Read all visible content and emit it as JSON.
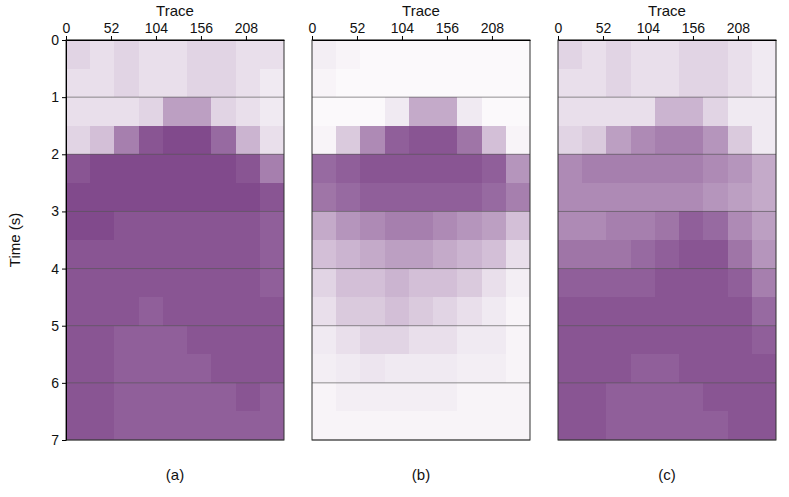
{
  "chart_data": [
    {
      "type": "heatmap",
      "title": "(a)",
      "x_label": "Trace",
      "y_label": "Time (s)",
      "xlim": [
        0,
        252
      ],
      "ylim": [
        0,
        7
      ],
      "xticks": [
        0,
        52,
        104,
        156,
        208
      ],
      "yticks": [
        0,
        1,
        2,
        3,
        4,
        5,
        6,
        7
      ],
      "grid": true,
      "color": "#6b2a78",
      "zlim": [
        0,
        1
      ],
      "x_bins": [
        0,
        28,
        56,
        84,
        112,
        140,
        168,
        196,
        224,
        252
      ],
      "y_bins": [
        0,
        0.5,
        1,
        1.5,
        2,
        2.5,
        3,
        3.5,
        4,
        4.5,
        5,
        5.5,
        6,
        6.5,
        7
      ],
      "cells": [
        [
          0.2,
          0.15,
          0.2,
          0.15,
          0.15,
          0.2,
          0.2,
          0.15,
          0.15
        ],
        [
          0.15,
          0.15,
          0.2,
          0.15,
          0.15,
          0.2,
          0.2,
          0.15,
          0.1
        ],
        [
          0.15,
          0.15,
          0.15,
          0.2,
          0.45,
          0.45,
          0.2,
          0.15,
          0.1
        ],
        [
          0.2,
          0.3,
          0.6,
          0.8,
          0.85,
          0.85,
          0.7,
          0.35,
          0.15
        ],
        [
          0.8,
          0.85,
          0.85,
          0.85,
          0.85,
          0.85,
          0.85,
          0.8,
          0.6
        ],
        [
          0.85,
          0.85,
          0.85,
          0.85,
          0.85,
          0.85,
          0.85,
          0.85,
          0.8
        ],
        [
          0.85,
          0.85,
          0.8,
          0.8,
          0.8,
          0.8,
          0.8,
          0.8,
          0.75
        ],
        [
          0.8,
          0.8,
          0.8,
          0.8,
          0.8,
          0.8,
          0.8,
          0.8,
          0.75
        ],
        [
          0.8,
          0.8,
          0.8,
          0.8,
          0.8,
          0.8,
          0.8,
          0.8,
          0.75
        ],
        [
          0.8,
          0.8,
          0.8,
          0.75,
          0.8,
          0.8,
          0.8,
          0.8,
          0.8
        ],
        [
          0.8,
          0.8,
          0.75,
          0.75,
          0.75,
          0.8,
          0.8,
          0.8,
          0.8
        ],
        [
          0.8,
          0.8,
          0.75,
          0.75,
          0.75,
          0.75,
          0.8,
          0.8,
          0.8
        ],
        [
          0.8,
          0.8,
          0.75,
          0.75,
          0.75,
          0.75,
          0.75,
          0.8,
          0.75
        ],
        [
          0.8,
          0.8,
          0.75,
          0.75,
          0.75,
          0.75,
          0.75,
          0.75,
          0.75
        ]
      ]
    },
    {
      "type": "heatmap",
      "title": "(b)",
      "x_label": "Trace",
      "xlim": [
        0,
        252
      ],
      "ylim": [
        0,
        7
      ],
      "xticks": [
        0,
        52,
        104,
        156,
        208
      ],
      "yticks": [
        0,
        1,
        2,
        3,
        4,
        5,
        6,
        7
      ],
      "grid": true,
      "tick_labels": "x",
      "color": "#6b2a78",
      "zlim": [
        0,
        1
      ],
      "x_bins": [
        0,
        28,
        56,
        84,
        112,
        140,
        168,
        196,
        224,
        252
      ],
      "y_bins": [
        0,
        0.5,
        1,
        1.5,
        2,
        2.5,
        3,
        3.5,
        4,
        4.5,
        5,
        5.5,
        6,
        6.5,
        7
      ],
      "cells": [
        [
          0.08,
          0.05,
          0.03,
          0.03,
          0.03,
          0.03,
          0.03,
          0.03,
          0.03
        ],
        [
          0.05,
          0.03,
          0.03,
          0.03,
          0.03,
          0.03,
          0.03,
          0.03,
          0.03
        ],
        [
          0.03,
          0.03,
          0.03,
          0.1,
          0.4,
          0.4,
          0.1,
          0.03,
          0.03
        ],
        [
          0.05,
          0.25,
          0.55,
          0.75,
          0.8,
          0.8,
          0.65,
          0.3,
          0.05
        ],
        [
          0.7,
          0.75,
          0.8,
          0.8,
          0.8,
          0.8,
          0.8,
          0.75,
          0.5
        ],
        [
          0.65,
          0.7,
          0.75,
          0.75,
          0.75,
          0.75,
          0.75,
          0.7,
          0.6
        ],
        [
          0.4,
          0.5,
          0.55,
          0.6,
          0.6,
          0.55,
          0.5,
          0.45,
          0.3
        ],
        [
          0.3,
          0.35,
          0.4,
          0.45,
          0.45,
          0.4,
          0.35,
          0.3,
          0.15
        ],
        [
          0.2,
          0.3,
          0.3,
          0.35,
          0.3,
          0.3,
          0.25,
          0.15,
          0.08
        ],
        [
          0.15,
          0.25,
          0.25,
          0.3,
          0.25,
          0.2,
          0.15,
          0.1,
          0.05
        ],
        [
          0.1,
          0.15,
          0.2,
          0.2,
          0.15,
          0.15,
          0.1,
          0.1,
          0.05
        ],
        [
          0.08,
          0.1,
          0.12,
          0.1,
          0.1,
          0.1,
          0.08,
          0.08,
          0.05
        ],
        [
          0.05,
          0.08,
          0.08,
          0.08,
          0.08,
          0.08,
          0.05,
          0.05,
          0.05
        ],
        [
          0.05,
          0.05,
          0.05,
          0.05,
          0.05,
          0.05,
          0.05,
          0.05,
          0.05
        ]
      ]
    },
    {
      "type": "heatmap",
      "title": "(c)",
      "x_label": "Trace",
      "xlim": [
        0,
        252
      ],
      "ylim": [
        0,
        7
      ],
      "xticks": [
        0,
        52,
        104,
        156,
        208
      ],
      "yticks": [
        0,
        1,
        2,
        3,
        4,
        5,
        6,
        7
      ],
      "grid": true,
      "tick_labels": "x",
      "color": "#6b2a78",
      "zlim": [
        0,
        1
      ],
      "x_bins": [
        0,
        28,
        56,
        84,
        112,
        140,
        168,
        196,
        224,
        252
      ],
      "y_bins": [
        0,
        0.5,
        1,
        1.5,
        2,
        2.5,
        3,
        3.5,
        4,
        4.5,
        5,
        5.5,
        6,
        6.5,
        7
      ],
      "cells": [
        [
          0.2,
          0.15,
          0.2,
          0.15,
          0.15,
          0.2,
          0.2,
          0.15,
          0.1
        ],
        [
          0.15,
          0.15,
          0.2,
          0.15,
          0.15,
          0.2,
          0.2,
          0.15,
          0.1
        ],
        [
          0.15,
          0.15,
          0.15,
          0.15,
          0.35,
          0.35,
          0.2,
          0.1,
          0.1
        ],
        [
          0.2,
          0.25,
          0.45,
          0.55,
          0.6,
          0.6,
          0.5,
          0.25,
          0.1
        ],
        [
          0.55,
          0.6,
          0.6,
          0.6,
          0.6,
          0.6,
          0.55,
          0.5,
          0.4
        ],
        [
          0.55,
          0.55,
          0.55,
          0.55,
          0.55,
          0.55,
          0.5,
          0.45,
          0.4
        ],
        [
          0.55,
          0.55,
          0.6,
          0.6,
          0.65,
          0.75,
          0.7,
          0.55,
          0.45
        ],
        [
          0.65,
          0.65,
          0.65,
          0.7,
          0.75,
          0.8,
          0.8,
          0.65,
          0.5
        ],
        [
          0.75,
          0.75,
          0.75,
          0.75,
          0.8,
          0.8,
          0.8,
          0.75,
          0.6
        ],
        [
          0.8,
          0.8,
          0.8,
          0.8,
          0.8,
          0.8,
          0.8,
          0.8,
          0.7
        ],
        [
          0.8,
          0.8,
          0.8,
          0.8,
          0.8,
          0.8,
          0.8,
          0.8,
          0.75
        ],
        [
          0.8,
          0.8,
          0.8,
          0.75,
          0.75,
          0.8,
          0.8,
          0.8,
          0.8
        ],
        [
          0.8,
          0.8,
          0.75,
          0.75,
          0.75,
          0.75,
          0.8,
          0.8,
          0.8
        ],
        [
          0.8,
          0.8,
          0.75,
          0.75,
          0.75,
          0.75,
          0.75,
          0.8,
          0.8
        ]
      ]
    }
  ]
}
